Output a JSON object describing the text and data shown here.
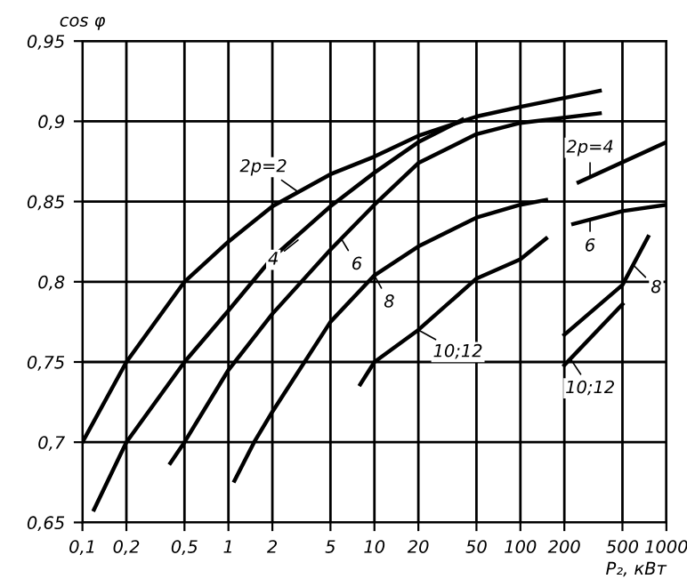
{
  "chart_data": {
    "type": "line",
    "xlabel": "P₂, кВт",
    "ylabel": "cos φ",
    "log": "x",
    "grid": true,
    "legend": false,
    "marker": "none",
    "line_style": "solid",
    "xlim": [
      0.1,
      1000
    ],
    "ylim": [
      0.65,
      0.95
    ],
    "xticks": [
      {
        "value": 0.1,
        "label": "0,1"
      },
      {
        "value": 0.2,
        "label": "0,2"
      },
      {
        "value": 0.5,
        "label": "0,5"
      },
      1,
      2,
      5,
      10,
      20,
      50,
      100,
      200,
      500,
      1000
    ],
    "yticks": [
      {
        "value": 0.65,
        "label": "0,65"
      },
      {
        "value": 0.7,
        "label": "0,7"
      },
      {
        "value": 0.75,
        "label": "0,75"
      },
      {
        "value": 0.8,
        "label": "0,8"
      },
      {
        "value": 0.85,
        "label": "0,85"
      },
      {
        "value": 0.9,
        "label": "0,9"
      },
      {
        "value": 0.95,
        "label": "0,95"
      }
    ],
    "series": [
      {
        "color": "#000000",
        "x": [
          0.1,
          0.2,
          0.5,
          1,
          2,
          5,
          10,
          20,
          50,
          100,
          350
        ],
        "values": [
          0.7,
          0.75,
          0.8,
          0.825,
          0.847,
          0.867,
          0.878,
          0.891,
          0.903,
          0.909,
          0.919
        ]
      },
      {
        "color": "#000000",
        "x": [
          0.12,
          0.2,
          0.5,
          1,
          2,
          5,
          10,
          20,
          40
        ],
        "values": [
          0.658,
          0.7,
          0.75,
          0.782,
          0.815,
          0.847,
          0.868,
          0.887,
          0.901
        ]
      },
      {
        "color": "#000000",
        "x": [
          0.4,
          0.5,
          1,
          2,
          5,
          10,
          20,
          50,
          100,
          350
        ],
        "values": [
          0.687,
          0.7,
          0.745,
          0.78,
          0.82,
          0.848,
          0.874,
          0.892,
          0.899,
          0.905
        ]
      },
      {
        "color": "#000000",
        "x": [
          1.1,
          1.5,
          2,
          5,
          10,
          20,
          50,
          100,
          150
        ],
        "values": [
          0.676,
          0.7,
          0.719,
          0.775,
          0.804,
          0.822,
          0.84,
          0.848,
          0.851
        ]
      },
      {
        "color": "#000000",
        "x": [
          8,
          10,
          20,
          50,
          100,
          150
        ],
        "values": [
          0.736,
          0.75,
          0.77,
          0.802,
          0.814,
          0.827
        ]
      },
      {
        "color": "#000000",
        "x": [
          250,
          1000
        ],
        "values": [
          0.862,
          0.887
        ]
      },
      {
        "color": "#000000",
        "x": [
          230,
          500,
          1000
        ],
        "values": [
          0.836,
          0.844,
          0.848
        ]
      },
      {
        "color": "#000000",
        "x": [
          200,
          500,
          750
        ],
        "values": [
          0.767,
          0.798,
          0.828
        ]
      },
      {
        "color": "#000000",
        "x": [
          200,
          500
        ],
        "values": [
          0.748,
          0.786
        ]
      }
    ],
    "annotations": [
      {
        "text": "2p=2",
        "x": 3,
        "y": 0.856
      },
      {
        "text": "4",
        "x": 3,
        "y": 0.826
      },
      {
        "text": "6",
        "x": 6,
        "y": 0.826
      },
      {
        "text": "8",
        "x": 10,
        "y": 0.804
      },
      {
        "text": "10;12",
        "x": 20,
        "y": 0.77
      },
      {
        "text": "2p=4",
        "x": 300,
        "y": 0.865
      },
      {
        "text": "6",
        "x": 300,
        "y": 0.839
      },
      {
        "text": "8",
        "x": 600,
        "y": 0.81
      },
      {
        "text": "10;12",
        "x": 220,
        "y": 0.752
      }
    ]
  }
}
